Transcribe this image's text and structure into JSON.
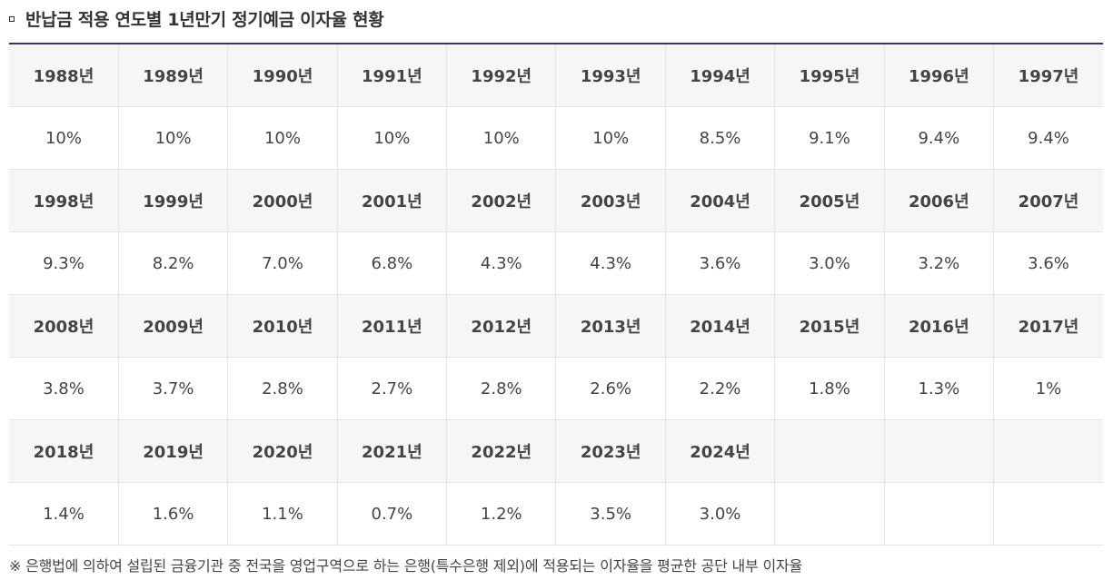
{
  "title": "반납금 적용 연도별 1년만기 정기예금 이자율 현황",
  "table": {
    "rows": [
      {
        "years": [
          "1988년",
          "1989년",
          "1990년",
          "1991년",
          "1992년",
          "1993년",
          "1994년",
          "1995년",
          "1996년",
          "1997년"
        ],
        "rates": [
          "10%",
          "10%",
          "10%",
          "10%",
          "10%",
          "10%",
          "8.5%",
          "9.1%",
          "9.4%",
          "9.4%"
        ]
      },
      {
        "years": [
          "1998년",
          "1999년",
          "2000년",
          "2001년",
          "2002년",
          "2003년",
          "2004년",
          "2005년",
          "2006년",
          "2007년"
        ],
        "rates": [
          "9.3%",
          "8.2%",
          "7.0%",
          "6.8%",
          "4.3%",
          "4.3%",
          "3.6%",
          "3.0%",
          "3.2%",
          "3.6%"
        ]
      },
      {
        "years": [
          "2008년",
          "2009년",
          "2010년",
          "2011년",
          "2012년",
          "2013년",
          "2014년",
          "2015년",
          "2016년",
          "2017년"
        ],
        "rates": [
          "3.8%",
          "3.7%",
          "2.8%",
          "2.7%",
          "2.8%",
          "2.6%",
          "2.2%",
          "1.8%",
          "1.3%",
          "1%"
        ]
      },
      {
        "years": [
          "2018년",
          "2019년",
          "2020년",
          "2021년",
          "2022년",
          "2023년",
          "2024년",
          "",
          "",
          ""
        ],
        "rates": [
          "1.4%",
          "1.6%",
          "1.1%",
          "0.7%",
          "1.2%",
          "3.5%",
          "3.0%",
          "",
          "",
          ""
        ]
      }
    ]
  },
  "note": "※ 은행법에 의하여 설립된 금융기관 중 전국을 영업구역으로 하는 은행(특수은행 제외)에 적용되는 이자율을 평균한 공단 내부 이자율"
}
